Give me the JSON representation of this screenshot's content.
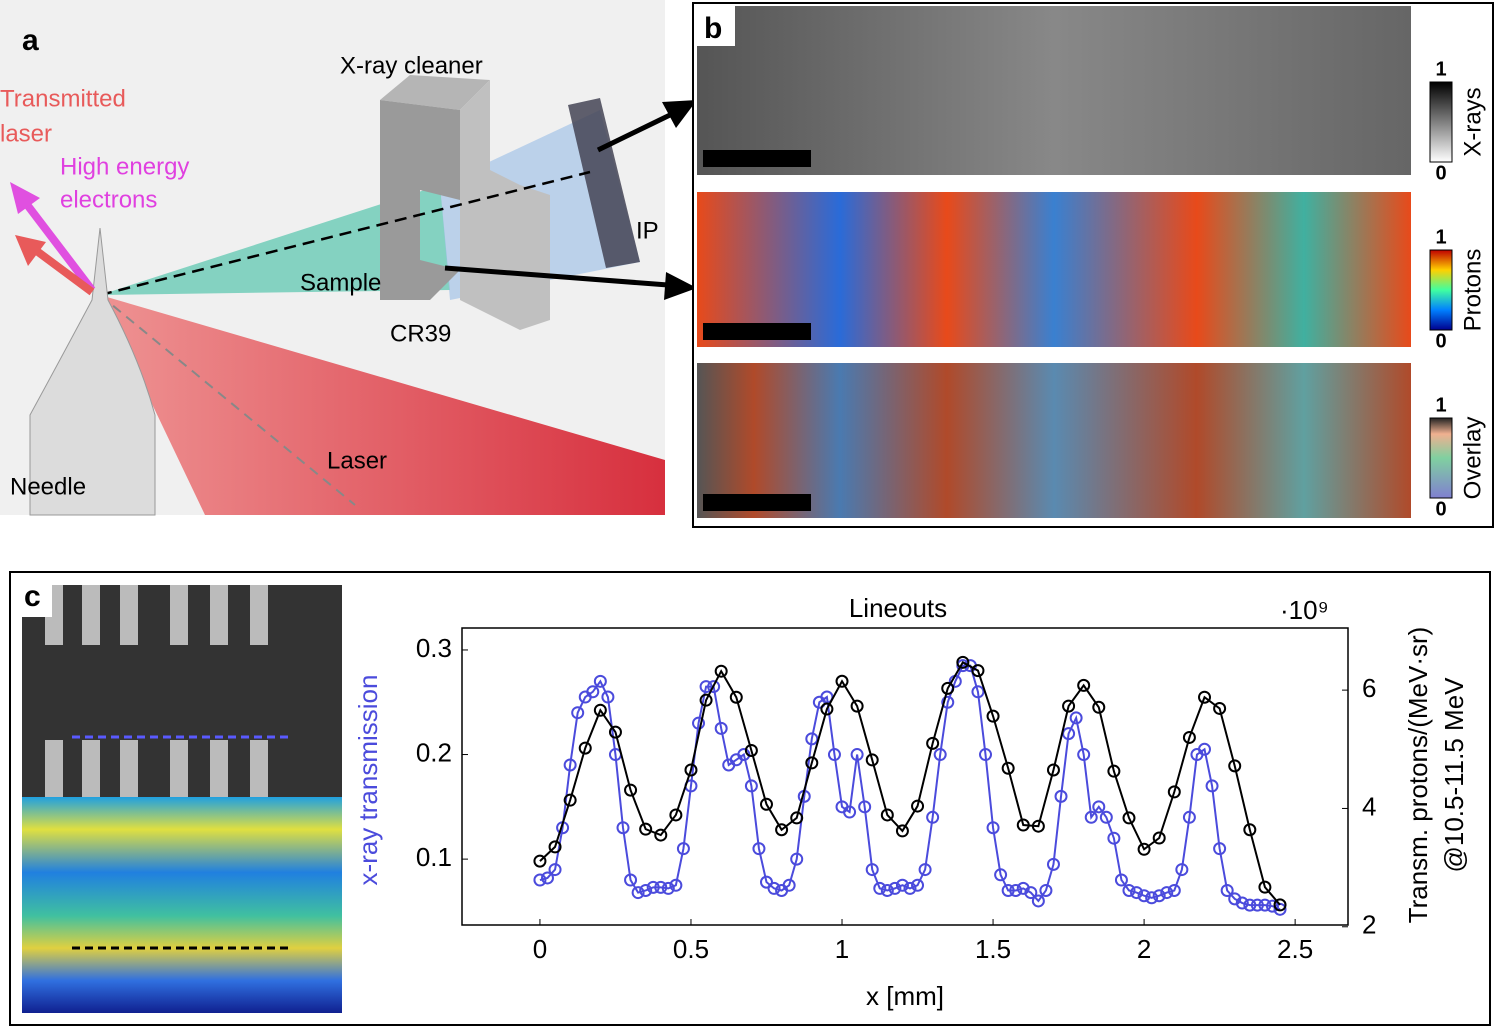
{
  "panels": {
    "a": {
      "label": "a",
      "transmitted_laser": [
        "Transmitted",
        "laser"
      ],
      "electrons": [
        "High energy",
        "electrons"
      ],
      "cleaner": "X-ray cleaner",
      "ip": "IP",
      "sample": "Sample",
      "cr39": "CR39",
      "laser": "Laser",
      "needle": "Needle"
    },
    "b": {
      "label": "b",
      "colorbars": [
        {
          "max": 1,
          "min": 0,
          "label": "X-rays"
        },
        {
          "max": 1,
          "min": 0,
          "label": "Protons"
        },
        {
          "max": 1,
          "min": 0,
          "label": "Overlay"
        }
      ]
    },
    "c": {
      "label": "c"
    }
  },
  "chart_data": {
    "type": "line",
    "title": "Lineouts",
    "xlabel": "x [mm]",
    "ylabel": "x-ray transmission",
    "y2label": [
      "Transm. protons/(MeV·sr)",
      "@10.5-11.5 MeV"
    ],
    "y2_multiplier": "·10⁹",
    "xlim": [
      -0.258,
      2.675
    ],
    "xticks": [
      0,
      0.5,
      1,
      1.5,
      2,
      2.5
    ],
    "ylim": [
      0.037,
      0.321
    ],
    "yticks": [
      0.1,
      0.2,
      0.3
    ],
    "y2lim": [
      2.03,
      7.05
    ],
    "y2ticks": [
      2,
      4,
      6
    ],
    "series": [
      {
        "color": "#4b4bdc",
        "axis": "y",
        "x": [
          0,
          0.025,
          0.05,
          0.075,
          0.1,
          0.125,
          0.15,
          0.175,
          0.2,
          0.225,
          0.25,
          0.275,
          0.3,
          0.325,
          0.35,
          0.375,
          0.4,
          0.425,
          0.45,
          0.475,
          0.5,
          0.525,
          0.55,
          0.575,
          0.6,
          0.625,
          0.65,
          0.675,
          0.7,
          0.725,
          0.75,
          0.775,
          0.8,
          0.825,
          0.85,
          0.875,
          0.9,
          0.925,
          0.95,
          0.975,
          1.0,
          1.025,
          1.05,
          1.075,
          1.1,
          1.125,
          1.15,
          1.175,
          1.2,
          1.225,
          1.25,
          1.275,
          1.3,
          1.325,
          1.35,
          1.375,
          1.4,
          1.425,
          1.45,
          1.475,
          1.5,
          1.525,
          1.55,
          1.575,
          1.6,
          1.625,
          1.65,
          1.675,
          1.7,
          1.725,
          1.75,
          1.775,
          1.8,
          1.825,
          1.85,
          1.875,
          1.9,
          1.925,
          1.95,
          1.975,
          2.0,
          2.025,
          2.05,
          2.075,
          2.1,
          2.125,
          2.15,
          2.175,
          2.2,
          2.225,
          2.25,
          2.275,
          2.3,
          2.325,
          2.35,
          2.375,
          2.4,
          2.425,
          2.45
        ],
        "values": [
          0.08,
          0.082,
          0.09,
          0.13,
          0.19,
          0.24,
          0.255,
          0.26,
          0.27,
          0.255,
          0.2,
          0.13,
          0.08,
          0.068,
          0.07,
          0.073,
          0.073,
          0.072,
          0.075,
          0.11,
          0.17,
          0.23,
          0.265,
          0.265,
          0.225,
          0.19,
          0.195,
          0.2,
          0.17,
          0.11,
          0.078,
          0.072,
          0.07,
          0.075,
          0.1,
          0.16,
          0.215,
          0.25,
          0.255,
          0.2,
          0.15,
          0.145,
          0.2,
          0.15,
          0.09,
          0.072,
          0.07,
          0.072,
          0.075,
          0.072,
          0.075,
          0.09,
          0.14,
          0.2,
          0.25,
          0.27,
          0.285,
          0.285,
          0.26,
          0.2,
          0.13,
          0.085,
          0.07,
          0.07,
          0.072,
          0.068,
          0.06,
          0.07,
          0.095,
          0.16,
          0.22,
          0.235,
          0.2,
          0.14,
          0.15,
          0.14,
          0.12,
          0.08,
          0.07,
          0.068,
          0.065,
          0.063,
          0.065,
          0.068,
          0.07,
          0.09,
          0.14,
          0.2,
          0.205,
          0.17,
          0.11,
          0.07,
          0.062,
          0.058,
          0.056,
          0.056,
          0.056,
          0.055,
          0.052
        ]
      },
      {
        "color": "#000000",
        "axis": "y2",
        "x": [
          0,
          0.05,
          0.1,
          0.15,
          0.2,
          0.25,
          0.3,
          0.35,
          0.4,
          0.45,
          0.5,
          0.55,
          0.6,
          0.65,
          0.7,
          0.75,
          0.8,
          0.85,
          0.9,
          0.95,
          1.0,
          1.05,
          1.1,
          1.15,
          1.2,
          1.25,
          1.3,
          1.35,
          1.4,
          1.45,
          1.5,
          1.55,
          1.6,
          1.65,
          1.7,
          1.75,
          1.8,
          1.85,
          1.9,
          1.95,
          2.0,
          2.05,
          2.1,
          2.15,
          2.2,
          2.25,
          2.3,
          2.35,
          2.4,
          2.45
        ],
        "values": [
          3.11,
          3.35,
          4.14,
          5.02,
          5.66,
          5.29,
          4.31,
          3.65,
          3.55,
          3.89,
          4.65,
          5.83,
          6.32,
          5.88,
          4.98,
          4.07,
          3.64,
          3.84,
          4.77,
          5.68,
          6.15,
          5.73,
          4.82,
          3.89,
          3.62,
          4.04,
          5.1,
          6.03,
          6.47,
          6.33,
          5.56,
          4.68,
          3.72,
          3.7,
          4.65,
          5.73,
          6.08,
          5.71,
          4.63,
          3.84,
          3.31,
          3.5,
          4.28,
          5.2,
          5.88,
          5.69,
          4.72,
          3.64,
          2.67,
          2.37
        ]
      }
    ]
  }
}
